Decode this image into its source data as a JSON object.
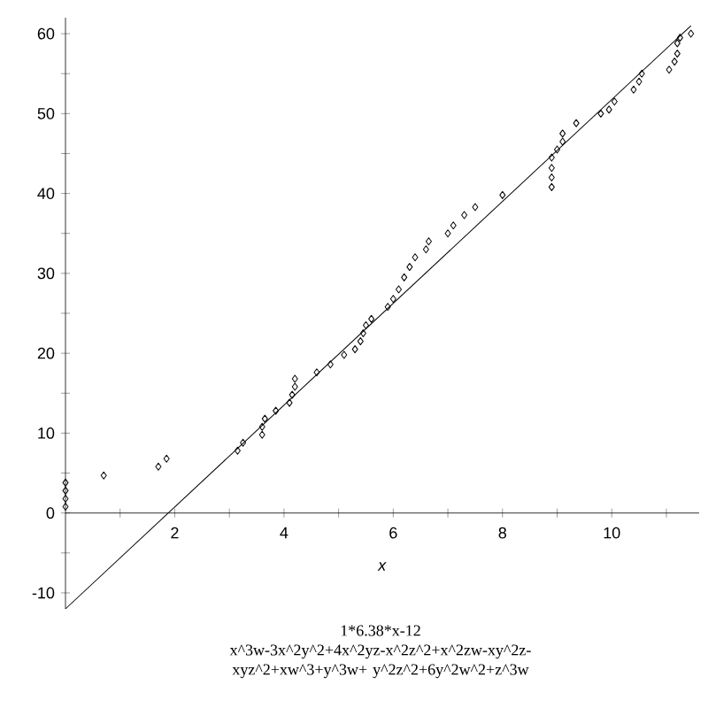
{
  "chart_data": {
    "type": "scatter",
    "xlabel": "*x*",
    "annotations": [
      "1*6.38*x-12",
      "x^3w-3x^2y^2+4x^2yz-x^2z^2+x^2zw-xy^2z-xyz^2+xw^3+y^3w+ y^2z^2+6y^2w^2+z^3w"
    ],
    "xlim": [
      0,
      11.6
    ],
    "ylim": [
      -12,
      62
    ],
    "xticks": [
      {
        "value": 1,
        "label": null
      },
      2,
      {
        "value": 3,
        "label": null
      },
      4,
      {
        "value": 5,
        "label": null
      },
      6,
      {
        "value": 7,
        "label": null
      },
      8,
      {
        "value": 9,
        "label": null
      },
      10,
      {
        "value": 11,
        "label": null
      }
    ],
    "yticks": [
      -10,
      {
        "value": -5,
        "label": null
      },
      0,
      {
        "value": 5,
        "label": null
      },
      10,
      {
        "value": 15,
        "label": null
      },
      20,
      {
        "value": 25,
        "label": null
      },
      30,
      {
        "value": 35,
        "label": null
      },
      40,
      {
        "value": 45,
        "label": null
      },
      50,
      {
        "value": 55,
        "label": null
      },
      60
    ],
    "marker": "diamond",
    "series": [
      {
        "color": "#000000",
        "x": [
          0,
          0,
          0,
          0,
          0.7,
          1.7,
          1.85,
          3.15,
          3.25,
          3.6,
          3.6,
          3.65,
          3.85,
          4.1,
          4.15,
          4.2,
          4.2,
          4.6,
          4.85,
          5.1,
          5.3,
          5.4,
          5.45,
          5.5,
          5.6,
          5.9,
          6.0,
          6.1,
          6.2,
          6.3,
          6.4,
          6.6,
          6.65,
          7.0,
          7.1,
          7.3,
          7.5,
          8.0,
          8.9,
          8.9,
          8.9,
          8.9,
          9.0,
          9.1,
          9.1,
          9.35,
          9.8,
          9.95,
          10.05,
          10.4,
          10.5,
          10.55,
          11.05,
          11.15,
          11.2,
          11.2,
          11.25,
          11.45
        ],
        "values": [
          0.8,
          1.8,
          2.8,
          3.8,
          4.7,
          5.8,
          6.8,
          7.8,
          8.8,
          9.8,
          10.8,
          11.8,
          12.8,
          13.8,
          14.8,
          15.8,
          16.8,
          17.6,
          18.6,
          19.8,
          20.5,
          21.5,
          22.5,
          23.5,
          24.3,
          25.8,
          26.8,
          28,
          29.5,
          30.8,
          32,
          33,
          34,
          35,
          36,
          37.3,
          38.3,
          39.8,
          40.8,
          42,
          43.2,
          44.5,
          45.5,
          46.5,
          47.5,
          48.8,
          50,
          50.5,
          51.5,
          53,
          54,
          55,
          55.5,
          56.5,
          57.5,
          58.8,
          59.5,
          60
        ]
      },
      {
        "type": "line",
        "color": "#000000",
        "marker": "none",
        "line_style": "solid",
        "x": [
          0,
          11.45
        ],
        "values": [
          -12,
          61
        ]
      }
    ]
  }
}
